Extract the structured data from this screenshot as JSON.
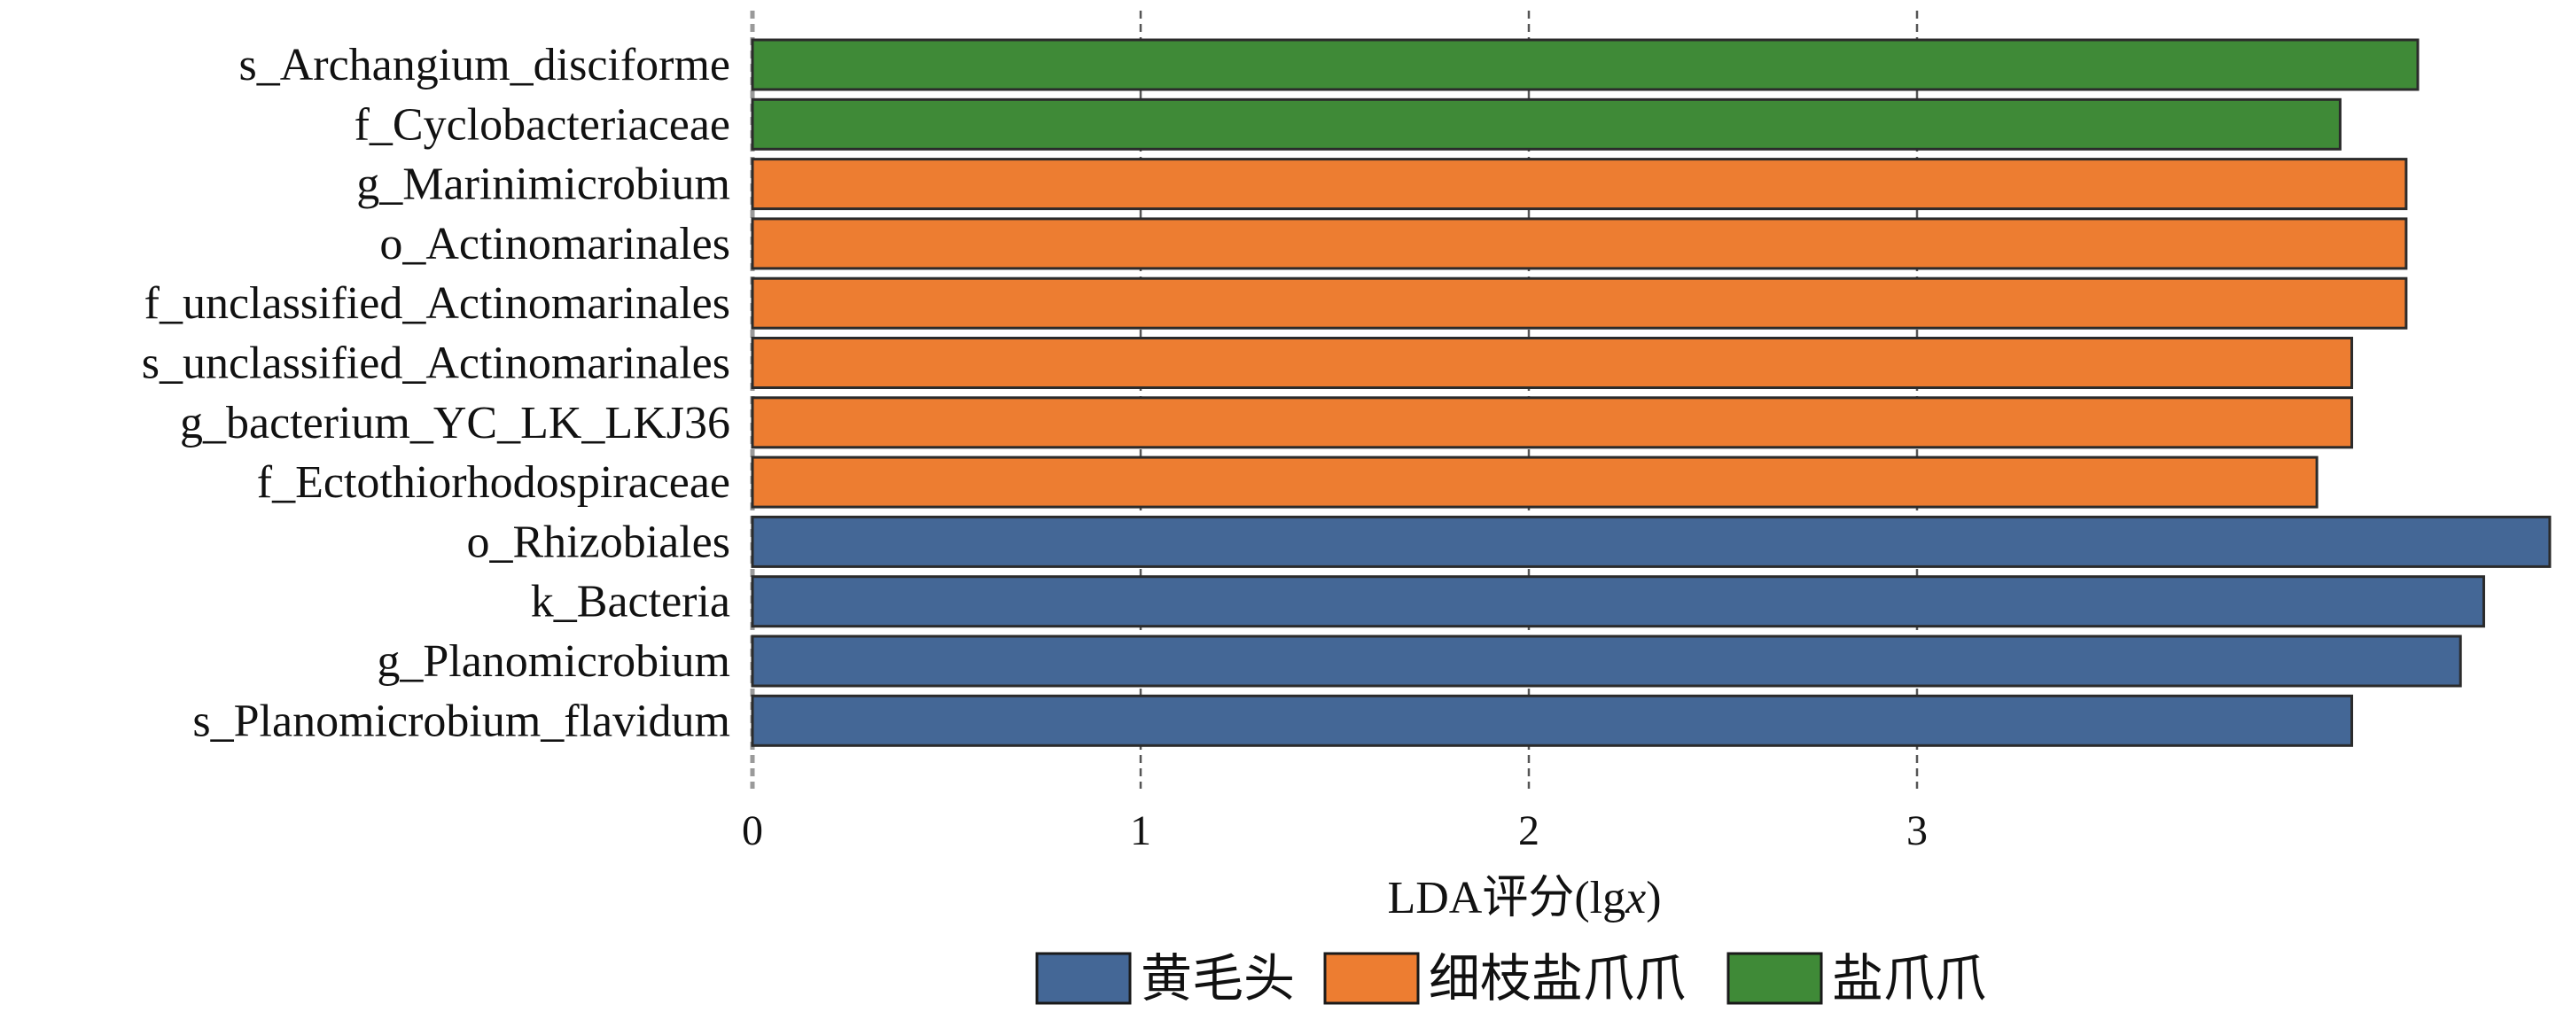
{
  "chart_data": {
    "type": "bar",
    "orientation": "horizontal",
    "categories": [
      "s_Archangium_disciforme",
      "f_Cyclobacteriaceae",
      "g_Marinimicrobium",
      "o_Actinomarinales",
      "f_unclassified_Actinomarinales",
      "s_unclassified_Actinomarinales",
      "g_bacterium_YC_LK_LKJ36",
      "f_Ectothiorhodospiraceae",
      "o_Rhizobiales",
      "k_Bacteria",
      "g_Planomicrobium",
      "s_Planomicrobium_flavidum"
    ],
    "values": [
      4.29,
      4.09,
      4.26,
      4.26,
      4.26,
      4.12,
      4.12,
      4.03,
      4.63,
      4.46,
      4.4,
      4.12
    ],
    "groups": [
      "盐爪爪",
      "盐爪爪",
      "细枝盐爪爪",
      "细枝盐爪爪",
      "细枝盐爪爪",
      "细枝盐爪爪",
      "细枝盐爪爪",
      "细枝盐爪爪",
      "黄毛头",
      "黄毛头",
      "黄毛头",
      "黄毛头"
    ],
    "xlabel_prefix": "LDA评分(lg",
    "xlabel_italic": "x",
    "xlabel_suffix": ")",
    "xlabel": "LDA评分(lgx)",
    "xlim": [
      0,
      4.63
    ],
    "xticks": [
      0,
      1,
      2,
      3
    ],
    "grid": "vertical dashed",
    "legend_position": "bottom",
    "legend": [
      {
        "name": "黄毛头",
        "color": "#446796"
      },
      {
        "name": "细枝盐爪爪",
        "color": "#ED7D31"
      },
      {
        "name": "盐爪爪",
        "color": "#3F8A37"
      }
    ]
  }
}
